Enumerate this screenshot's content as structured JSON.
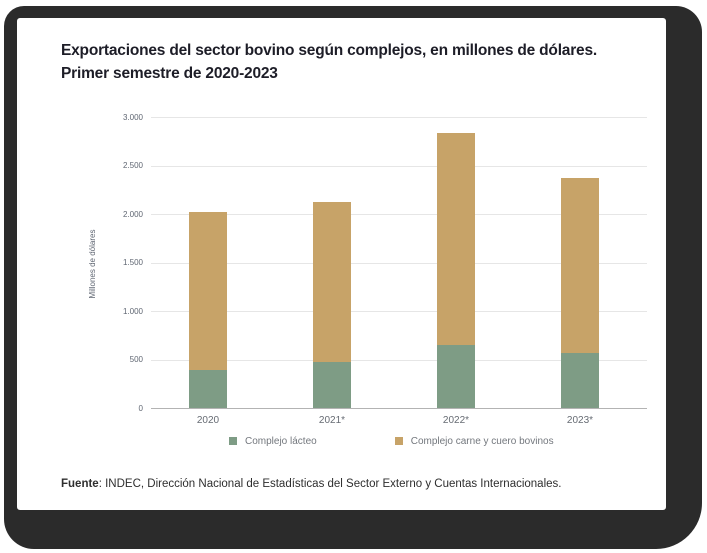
{
  "frame": {
    "color": "#2b2b2b",
    "card_background": "#ffffff"
  },
  "header": {
    "title_line1": "Exportaciones del sector bovino según complejos, en millones de dólares.",
    "title_line2": "Primer semestre de 2020-2023"
  },
  "footer": {
    "source_label": "Fuente",
    "source_text": ": INDEC, Dirección Nacional de Estadísticas del Sector Externo y Cuentas Internacionales."
  },
  "chart_data": {
    "type": "bar",
    "stacked": true,
    "title": "Exportaciones del sector bovino según complejos, en millones de dólares. Primer semestre de 2020-2023",
    "ylabel": "Millones de dólares",
    "xlabel": "",
    "categories": [
      "2020",
      "2021*",
      "2022*",
      "2023*"
    ],
    "series": [
      {
        "name": "Complejo lácteo",
        "color": "#7E9C85",
        "values": [
          390,
          475,
          650,
          570
        ]
      },
      {
        "name": "Complejo carne y cuero bovinos",
        "color": "#C7A368",
        "values": [
          1635,
          1645,
          2190,
          1805
        ]
      }
    ],
    "stack_totals": [
      2025,
      2120,
      2840,
      2375
    ],
    "ylim": [
      0,
      3000
    ],
    "yticks": [
      0,
      500,
      1000,
      1500,
      2000,
      2500,
      3000
    ],
    "ytick_labels": [
      "0",
      "500",
      "1.000",
      "1.500",
      "2.000",
      "2.500",
      "3.000"
    ],
    "grid": "horizontal",
    "gridline_color": "#e6e6e6",
    "axis_line_color": "#b3b3b3",
    "legend_position": "bottom"
  }
}
